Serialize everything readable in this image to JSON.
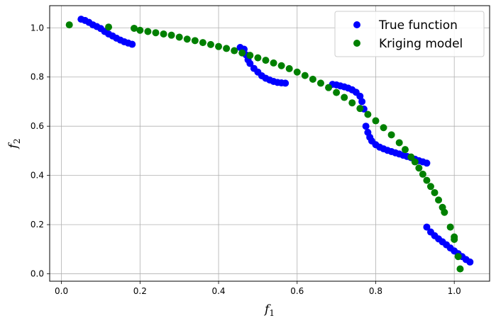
{
  "chart_data": {
    "type": "scatter",
    "xlabel": "f",
    "xlabel_sub": "1",
    "ylabel": "f",
    "ylabel_sub": "2",
    "xlim": [
      -0.03,
      1.09
    ],
    "ylim": [
      -0.03,
      1.09
    ],
    "xticks": [
      "0.0",
      "0.2",
      "0.4",
      "0.6",
      "0.8",
      "1.0"
    ],
    "yticks": [
      "0.0",
      "0.2",
      "0.4",
      "0.6",
      "0.8",
      "1.0"
    ],
    "grid": true,
    "legend_position": "top-right",
    "series": [
      {
        "name": "True function",
        "color": "#0000ff",
        "points": [
          [
            0.05,
            1.035
          ],
          [
            0.06,
            1.03
          ],
          [
            0.07,
            1.022
          ],
          [
            0.08,
            1.012
          ],
          [
            0.09,
            1.005
          ],
          [
            0.1,
            0.997
          ],
          [
            0.11,
            0.985
          ],
          [
            0.12,
            0.975
          ],
          [
            0.13,
            0.967
          ],
          [
            0.14,
            0.958
          ],
          [
            0.15,
            0.95
          ],
          [
            0.16,
            0.943
          ],
          [
            0.17,
            0.938
          ],
          [
            0.18,
            0.933
          ],
          [
            0.455,
            0.92
          ],
          [
            0.465,
            0.913
          ],
          [
            0.47,
            0.89
          ],
          [
            0.475,
            0.87
          ],
          [
            0.48,
            0.855
          ],
          [
            0.49,
            0.835
          ],
          [
            0.5,
            0.82
          ],
          [
            0.51,
            0.805
          ],
          [
            0.52,
            0.795
          ],
          [
            0.53,
            0.788
          ],
          [
            0.54,
            0.782
          ],
          [
            0.55,
            0.778
          ],
          [
            0.56,
            0.776
          ],
          [
            0.57,
            0.775
          ],
          [
            0.69,
            0.77
          ],
          [
            0.7,
            0.768
          ],
          [
            0.71,
            0.764
          ],
          [
            0.72,
            0.76
          ],
          [
            0.73,
            0.755
          ],
          [
            0.74,
            0.748
          ],
          [
            0.75,
            0.738
          ],
          [
            0.76,
            0.722
          ],
          [
            0.765,
            0.7
          ],
          [
            0.77,
            0.67
          ],
          [
            0.775,
            0.6
          ],
          [
            0.78,
            0.575
          ],
          [
            0.785,
            0.555
          ],
          [
            0.79,
            0.54
          ],
          [
            0.8,
            0.525
          ],
          [
            0.81,
            0.515
          ],
          [
            0.82,
            0.508
          ],
          [
            0.83,
            0.502
          ],
          [
            0.84,
            0.497
          ],
          [
            0.85,
            0.492
          ],
          [
            0.86,
            0.487
          ],
          [
            0.87,
            0.482
          ],
          [
            0.88,
            0.477
          ],
          [
            0.89,
            0.472
          ],
          [
            0.9,
            0.466
          ],
          [
            0.91,
            0.46
          ],
          [
            0.92,
            0.455
          ],
          [
            0.93,
            0.45
          ],
          [
            0.93,
            0.19
          ],
          [
            0.94,
            0.17
          ],
          [
            0.95,
            0.155
          ],
          [
            0.96,
            0.142
          ],
          [
            0.97,
            0.13
          ],
          [
            0.98,
            0.118
          ],
          [
            0.99,
            0.105
          ],
          [
            1.0,
            0.093
          ],
          [
            1.01,
            0.082
          ],
          [
            1.02,
            0.07
          ],
          [
            1.03,
            0.058
          ],
          [
            1.04,
            0.048
          ]
        ]
      },
      {
        "name": "Kriging model",
        "color": "#008000",
        "points": [
          [
            0.02,
            1.012
          ],
          [
            0.12,
            1.003
          ],
          [
            0.185,
            0.998
          ],
          [
            0.2,
            0.99
          ],
          [
            0.22,
            0.985
          ],
          [
            0.24,
            0.98
          ],
          [
            0.26,
            0.975
          ],
          [
            0.28,
            0.97
          ],
          [
            0.3,
            0.962
          ],
          [
            0.32,
            0.954
          ],
          [
            0.34,
            0.948
          ],
          [
            0.36,
            0.94
          ],
          [
            0.38,
            0.932
          ],
          [
            0.4,
            0.924
          ],
          [
            0.42,
            0.916
          ],
          [
            0.44,
            0.907
          ],
          [
            0.46,
            0.898
          ],
          [
            0.48,
            0.888
          ],
          [
            0.5,
            0.878
          ],
          [
            0.52,
            0.868
          ],
          [
            0.54,
            0.857
          ],
          [
            0.56,
            0.846
          ],
          [
            0.58,
            0.834
          ],
          [
            0.6,
            0.82
          ],
          [
            0.62,
            0.806
          ],
          [
            0.64,
            0.791
          ],
          [
            0.66,
            0.775
          ],
          [
            0.68,
            0.757
          ],
          [
            0.7,
            0.737
          ],
          [
            0.72,
            0.717
          ],
          [
            0.74,
            0.695
          ],
          [
            0.76,
            0.672
          ],
          [
            0.78,
            0.648
          ],
          [
            0.8,
            0.622
          ],
          [
            0.82,
            0.594
          ],
          [
            0.84,
            0.565
          ],
          [
            0.86,
            0.533
          ],
          [
            0.875,
            0.505
          ],
          [
            0.89,
            0.475
          ],
          [
            0.9,
            0.455
          ],
          [
            0.91,
            0.43
          ],
          [
            0.92,
            0.405
          ],
          [
            0.93,
            0.38
          ],
          [
            0.94,
            0.355
          ],
          [
            0.95,
            0.33
          ],
          [
            0.96,
            0.3
          ],
          [
            0.97,
            0.27
          ],
          [
            0.975,
            0.25
          ],
          [
            0.99,
            0.19
          ],
          [
            1.0,
            0.15
          ],
          [
            1.0,
            0.14
          ],
          [
            1.01,
            0.07
          ],
          [
            1.015,
            0.02
          ]
        ]
      }
    ]
  }
}
